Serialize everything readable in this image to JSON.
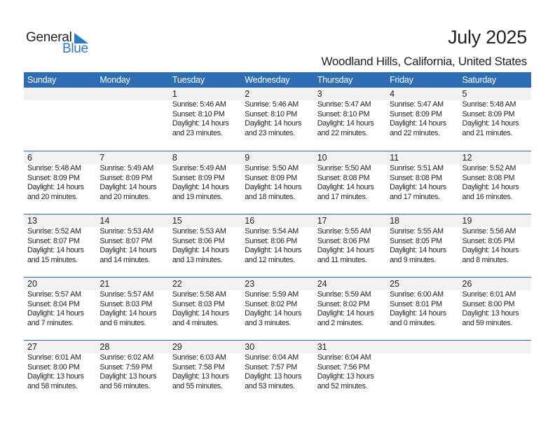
{
  "logo": {
    "text_general": "General",
    "text_blue": "Blue",
    "accent": "#2A7BC4"
  },
  "title": "July 2025",
  "subtitle": "Woodland Hills, California, United States",
  "header_color": "#2E6DB4",
  "weekdays": [
    "Sunday",
    "Monday",
    "Tuesday",
    "Wednesday",
    "Thursday",
    "Friday",
    "Saturday"
  ],
  "weeks": [
    [
      null,
      null,
      {
        "day": "1",
        "sunrise": "Sunrise: 5:46 AM",
        "sunset": "Sunset: 8:10 PM",
        "daylight1": "Daylight: 14 hours",
        "daylight2": "and 23 minutes."
      },
      {
        "day": "2",
        "sunrise": "Sunrise: 5:46 AM",
        "sunset": "Sunset: 8:10 PM",
        "daylight1": "Daylight: 14 hours",
        "daylight2": "and 23 minutes."
      },
      {
        "day": "3",
        "sunrise": "Sunrise: 5:47 AM",
        "sunset": "Sunset: 8:10 PM",
        "daylight1": "Daylight: 14 hours",
        "daylight2": "and 22 minutes."
      },
      {
        "day": "4",
        "sunrise": "Sunrise: 5:47 AM",
        "sunset": "Sunset: 8:09 PM",
        "daylight1": "Daylight: 14 hours",
        "daylight2": "and 22 minutes."
      },
      {
        "day": "5",
        "sunrise": "Sunrise: 5:48 AM",
        "sunset": "Sunset: 8:09 PM",
        "daylight1": "Daylight: 14 hours",
        "daylight2": "and 21 minutes."
      }
    ],
    [
      {
        "day": "6",
        "sunrise": "Sunrise: 5:48 AM",
        "sunset": "Sunset: 8:09 PM",
        "daylight1": "Daylight: 14 hours",
        "daylight2": "and 20 minutes."
      },
      {
        "day": "7",
        "sunrise": "Sunrise: 5:49 AM",
        "sunset": "Sunset: 8:09 PM",
        "daylight1": "Daylight: 14 hours",
        "daylight2": "and 20 minutes."
      },
      {
        "day": "8",
        "sunrise": "Sunrise: 5:49 AM",
        "sunset": "Sunset: 8:09 PM",
        "daylight1": "Daylight: 14 hours",
        "daylight2": "and 19 minutes."
      },
      {
        "day": "9",
        "sunrise": "Sunrise: 5:50 AM",
        "sunset": "Sunset: 8:09 PM",
        "daylight1": "Daylight: 14 hours",
        "daylight2": "and 18 minutes."
      },
      {
        "day": "10",
        "sunrise": "Sunrise: 5:50 AM",
        "sunset": "Sunset: 8:08 PM",
        "daylight1": "Daylight: 14 hours",
        "daylight2": "and 17 minutes."
      },
      {
        "day": "11",
        "sunrise": "Sunrise: 5:51 AM",
        "sunset": "Sunset: 8:08 PM",
        "daylight1": "Daylight: 14 hours",
        "daylight2": "and 17 minutes."
      },
      {
        "day": "12",
        "sunrise": "Sunrise: 5:52 AM",
        "sunset": "Sunset: 8:08 PM",
        "daylight1": "Daylight: 14 hours",
        "daylight2": "and 16 minutes."
      }
    ],
    [
      {
        "day": "13",
        "sunrise": "Sunrise: 5:52 AM",
        "sunset": "Sunset: 8:07 PM",
        "daylight1": "Daylight: 14 hours",
        "daylight2": "and 15 minutes."
      },
      {
        "day": "14",
        "sunrise": "Sunrise: 5:53 AM",
        "sunset": "Sunset: 8:07 PM",
        "daylight1": "Daylight: 14 hours",
        "daylight2": "and 14 minutes."
      },
      {
        "day": "15",
        "sunrise": "Sunrise: 5:53 AM",
        "sunset": "Sunset: 8:06 PM",
        "daylight1": "Daylight: 14 hours",
        "daylight2": "and 13 minutes."
      },
      {
        "day": "16",
        "sunrise": "Sunrise: 5:54 AM",
        "sunset": "Sunset: 8:06 PM",
        "daylight1": "Daylight: 14 hours",
        "daylight2": "and 12 minutes."
      },
      {
        "day": "17",
        "sunrise": "Sunrise: 5:55 AM",
        "sunset": "Sunset: 8:06 PM",
        "daylight1": "Daylight: 14 hours",
        "daylight2": "and 11 minutes."
      },
      {
        "day": "18",
        "sunrise": "Sunrise: 5:55 AM",
        "sunset": "Sunset: 8:05 PM",
        "daylight1": "Daylight: 14 hours",
        "daylight2": "and 9 minutes."
      },
      {
        "day": "19",
        "sunrise": "Sunrise: 5:56 AM",
        "sunset": "Sunset: 8:05 PM",
        "daylight1": "Daylight: 14 hours",
        "daylight2": "and 8 minutes."
      }
    ],
    [
      {
        "day": "20",
        "sunrise": "Sunrise: 5:57 AM",
        "sunset": "Sunset: 8:04 PM",
        "daylight1": "Daylight: 14 hours",
        "daylight2": "and 7 minutes."
      },
      {
        "day": "21",
        "sunrise": "Sunrise: 5:57 AM",
        "sunset": "Sunset: 8:03 PM",
        "daylight1": "Daylight: 14 hours",
        "daylight2": "and 6 minutes."
      },
      {
        "day": "22",
        "sunrise": "Sunrise: 5:58 AM",
        "sunset": "Sunset: 8:03 PM",
        "daylight1": "Daylight: 14 hours",
        "daylight2": "and 4 minutes."
      },
      {
        "day": "23",
        "sunrise": "Sunrise: 5:59 AM",
        "sunset": "Sunset: 8:02 PM",
        "daylight1": "Daylight: 14 hours",
        "daylight2": "and 3 minutes."
      },
      {
        "day": "24",
        "sunrise": "Sunrise: 5:59 AM",
        "sunset": "Sunset: 8:02 PM",
        "daylight1": "Daylight: 14 hours",
        "daylight2": "and 2 minutes."
      },
      {
        "day": "25",
        "sunrise": "Sunrise: 6:00 AM",
        "sunset": "Sunset: 8:01 PM",
        "daylight1": "Daylight: 14 hours",
        "daylight2": "and 0 minutes."
      },
      {
        "day": "26",
        "sunrise": "Sunrise: 6:01 AM",
        "sunset": "Sunset: 8:00 PM",
        "daylight1": "Daylight: 13 hours",
        "daylight2": "and 59 minutes."
      }
    ],
    [
      {
        "day": "27",
        "sunrise": "Sunrise: 6:01 AM",
        "sunset": "Sunset: 8:00 PM",
        "daylight1": "Daylight: 13 hours",
        "daylight2": "and 58 minutes."
      },
      {
        "day": "28",
        "sunrise": "Sunrise: 6:02 AM",
        "sunset": "Sunset: 7:59 PM",
        "daylight1": "Daylight: 13 hours",
        "daylight2": "and 56 minutes."
      },
      {
        "day": "29",
        "sunrise": "Sunrise: 6:03 AM",
        "sunset": "Sunset: 7:58 PM",
        "daylight1": "Daylight: 13 hours",
        "daylight2": "and 55 minutes."
      },
      {
        "day": "30",
        "sunrise": "Sunrise: 6:04 AM",
        "sunset": "Sunset: 7:57 PM",
        "daylight1": "Daylight: 13 hours",
        "daylight2": "and 53 minutes."
      },
      {
        "day": "31",
        "sunrise": "Sunrise: 6:04 AM",
        "sunset": "Sunset: 7:56 PM",
        "daylight1": "Daylight: 13 hours",
        "daylight2": "and 52 minutes."
      },
      null,
      null
    ]
  ]
}
